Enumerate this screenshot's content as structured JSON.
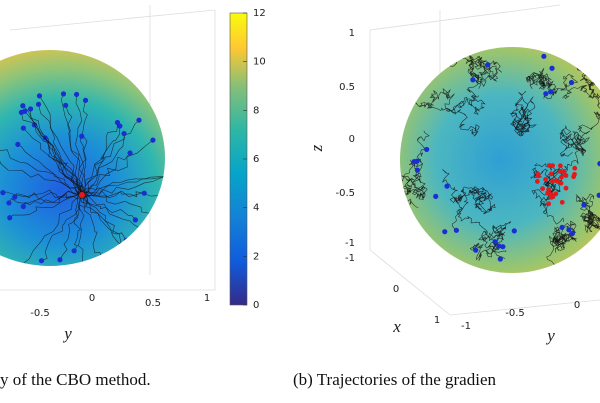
{
  "panels": [
    {
      "y_label": "y",
      "y_ticks": [
        -0.5,
        0,
        0.5,
        1
      ],
      "caption": "y of the CBO method."
    },
    {
      "z_label": "z",
      "z_ticks": [
        1,
        0.5,
        0,
        -0.5,
        -1
      ],
      "x_label": "x",
      "x_ticks": [
        -1,
        0,
        1
      ],
      "y_label": "y",
      "y_ticks": [
        -1,
        -0.5,
        0
      ],
      "caption": "(b) Trajectories of the gradien"
    }
  ],
  "colorbar": {
    "lim": [
      0,
      12
    ],
    "ticks": [
      0,
      2,
      4,
      6,
      8,
      10,
      12
    ]
  }
}
